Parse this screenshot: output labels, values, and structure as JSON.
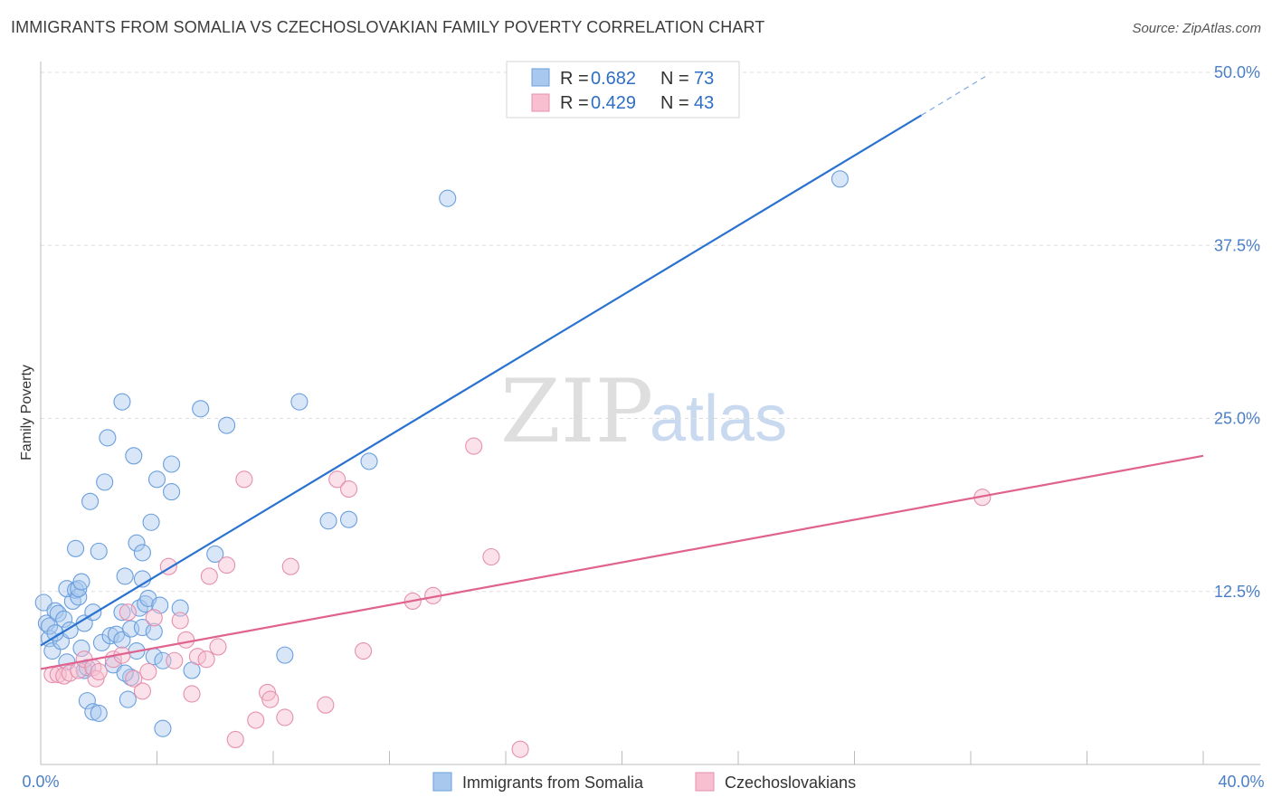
{
  "header": {
    "title": "IMMIGRANTS FROM SOMALIA VS CZECHOSLOVAKIAN FAMILY POVERTY CORRELATION CHART",
    "source": "Source: ZipAtlas.com"
  },
  "watermark": {
    "zip": "ZIP",
    "atlas": "atlas"
  },
  "legend": {
    "r_label": "R =",
    "n_label": "N =",
    "series": [
      {
        "r": "0.682",
        "n": "73"
      },
      {
        "r": "0.429",
        "n": "43"
      }
    ]
  },
  "colors": {
    "blue_fill": "#a9c8ee",
    "blue_stroke": "#6a9fde",
    "blue_line": "#2a72d0",
    "pink_fill": "#f7bfd0",
    "pink_stroke": "#e590ac",
    "pink_line": "#e0628e",
    "tick_text": "#4a7fc8"
  },
  "chart_data": {
    "type": "scatter",
    "title": "IMMIGRANTS FROM SOMALIA VS CZECHOSLOVAKIAN FAMILY POVERTY CORRELATION CHART",
    "xlabel": "",
    "ylabel": "Family Poverty",
    "xlim": [
      0,
      40
    ],
    "ylim": [
      0,
      50
    ],
    "x_tick_labels": [
      "0.0%",
      "40.0%"
    ],
    "y_ticks": [
      12.5,
      25.0,
      37.5,
      50.0
    ],
    "y_tick_labels": [
      "12.5%",
      "25.0%",
      "37.5%",
      "50.0%"
    ],
    "grid": true,
    "legend_position": "top-center",
    "series": [
      {
        "name": "Immigrants from Somalia",
        "color": "#6a9fde",
        "trend": {
          "x0": 0.0,
          "y0": 8.6,
          "x1": 30.3,
          "y1": 46.9,
          "dash_to_x": 32.5,
          "dash_to_y": 49.7
        },
        "points": [
          [
            0.1,
            11.7
          ],
          [
            0.2,
            10.2
          ],
          [
            0.3,
            9.1
          ],
          [
            0.3,
            10.0
          ],
          [
            0.4,
            8.2
          ],
          [
            0.5,
            11.1
          ],
          [
            0.6,
            10.9
          ],
          [
            0.7,
            8.9
          ],
          [
            0.8,
            10.5
          ],
          [
            0.9,
            7.4
          ],
          [
            1.0,
            9.7
          ],
          [
            1.1,
            11.8
          ],
          [
            0.9,
            12.7
          ],
          [
            1.2,
            12.6
          ],
          [
            1.3,
            12.1
          ],
          [
            1.3,
            12.7
          ],
          [
            1.4,
            13.2
          ],
          [
            1.5,
            10.2
          ],
          [
            1.2,
            15.6
          ],
          [
            1.7,
            19.0
          ],
          [
            1.4,
            8.4
          ],
          [
            1.5,
            6.8
          ],
          [
            1.6,
            4.6
          ],
          [
            1.8,
            3.8
          ],
          [
            2.0,
            3.7
          ],
          [
            2.0,
            15.4
          ],
          [
            2.1,
            8.8
          ],
          [
            2.2,
            20.4
          ],
          [
            2.3,
            23.6
          ],
          [
            2.4,
            9.3
          ],
          [
            2.5,
            7.2
          ],
          [
            2.6,
            9.4
          ],
          [
            1.8,
            11.0
          ],
          [
            2.8,
            11.0
          ],
          [
            2.8,
            9.0
          ],
          [
            2.8,
            26.2
          ],
          [
            2.9,
            13.6
          ],
          [
            3.0,
            4.7
          ],
          [
            3.1,
            6.3
          ],
          [
            3.1,
            9.8
          ],
          [
            3.2,
            22.3
          ],
          [
            3.3,
            8.2
          ],
          [
            3.3,
            16.0
          ],
          [
            3.4,
            11.3
          ],
          [
            3.5,
            9.9
          ],
          [
            3.5,
            13.4
          ],
          [
            3.5,
            15.3
          ],
          [
            3.6,
            11.6
          ],
          [
            3.7,
            12.0
          ],
          [
            3.8,
            17.5
          ],
          [
            3.9,
            9.6
          ],
          [
            3.9,
            7.8
          ],
          [
            4.0,
            20.6
          ],
          [
            4.1,
            11.5
          ],
          [
            4.2,
            7.5
          ],
          [
            4.2,
            2.6
          ],
          [
            4.5,
            19.7
          ],
          [
            4.5,
            21.7
          ],
          [
            4.8,
            11.3
          ],
          [
            5.2,
            6.8
          ],
          [
            5.5,
            25.7
          ],
          [
            6.0,
            15.2
          ],
          [
            6.4,
            24.5
          ],
          [
            8.4,
            7.9
          ],
          [
            8.9,
            26.2
          ],
          [
            9.9,
            17.6
          ],
          [
            10.6,
            17.7
          ],
          [
            11.3,
            21.9
          ],
          [
            14.0,
            40.9
          ],
          [
            27.5,
            42.3
          ],
          [
            1.6,
            7.0
          ],
          [
            2.9,
            6.6
          ],
          [
            0.5,
            9.5
          ]
        ]
      },
      {
        "name": "Czechoslovakians",
        "color": "#e590ac",
        "trend": {
          "x0": 0.0,
          "y0": 6.9,
          "x1": 40.0,
          "y1": 22.3
        },
        "points": [
          [
            0.4,
            6.5
          ],
          [
            0.6,
            6.5
          ],
          [
            0.8,
            6.4
          ],
          [
            1.0,
            6.6
          ],
          [
            1.3,
            6.8
          ],
          [
            1.5,
            7.6
          ],
          [
            1.8,
            7.0
          ],
          [
            1.9,
            6.2
          ],
          [
            2.0,
            6.7
          ],
          [
            2.5,
            7.6
          ],
          [
            2.8,
            7.9
          ],
          [
            3.0,
            11.0
          ],
          [
            3.2,
            6.2
          ],
          [
            3.5,
            5.3
          ],
          [
            3.7,
            6.7
          ],
          [
            3.9,
            10.6
          ],
          [
            4.4,
            14.3
          ],
          [
            4.6,
            7.5
          ],
          [
            4.8,
            10.4
          ],
          [
            5.2,
            5.1
          ],
          [
            5.4,
            7.8
          ],
          [
            5.7,
            7.6
          ],
          [
            5.8,
            13.6
          ],
          [
            6.1,
            8.5
          ],
          [
            6.4,
            14.4
          ],
          [
            6.7,
            1.8
          ],
          [
            7.0,
            20.6
          ],
          [
            7.4,
            3.2
          ],
          [
            7.8,
            5.2
          ],
          [
            7.9,
            4.7
          ],
          [
            8.4,
            3.4
          ],
          [
            8.6,
            14.3
          ],
          [
            9.8,
            4.3
          ],
          [
            10.2,
            20.6
          ],
          [
            10.6,
            19.9
          ],
          [
            11.1,
            8.2
          ],
          [
            12.8,
            11.8
          ],
          [
            13.5,
            12.2
          ],
          [
            14.9,
            23.0
          ],
          [
            15.5,
            15.0
          ],
          [
            16.5,
            1.1
          ],
          [
            32.4,
            19.3
          ],
          [
            5.0,
            9.0
          ]
        ]
      }
    ]
  }
}
